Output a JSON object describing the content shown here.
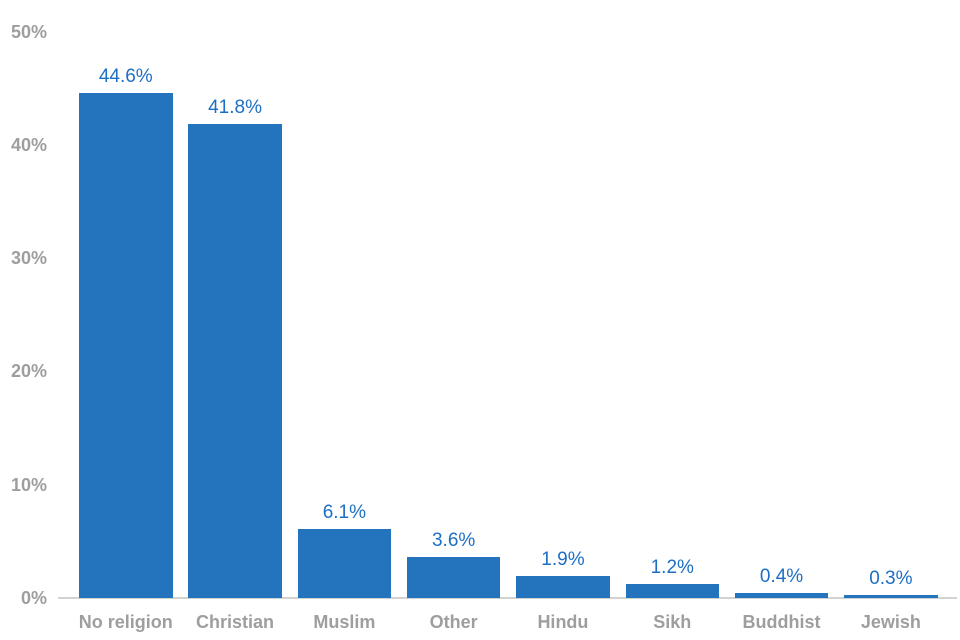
{
  "chart_data": {
    "type": "bar",
    "title": "",
    "xlabel": "",
    "ylabel": "",
    "categories": [
      "No religion",
      "Christian",
      "Muslim",
      "Other",
      "Hindu",
      "Sikh",
      "Buddhist",
      "Jewish"
    ],
    "values": [
      44.6,
      41.8,
      6.1,
      3.6,
      1.9,
      1.2,
      0.4,
      0.3
    ],
    "value_labels": [
      "44.6%",
      "41.8%",
      "6.1%",
      "3.6%",
      "1.9%",
      "1.2%",
      "0.4%",
      "0.3%"
    ],
    "yticks": [
      0,
      10,
      20,
      30,
      40,
      50
    ],
    "ytick_labels": [
      "0%",
      "10%",
      "20%",
      "30%",
      "40%",
      "50%"
    ],
    "ylim": [
      0,
      50
    ],
    "grid": false,
    "legend": "none",
    "bar_color": "#2374bc",
    "value_label_color": "#1d6fc4",
    "axis_text_color": "#9e9e9e",
    "axis_line_color": "#d2d2d0"
  }
}
